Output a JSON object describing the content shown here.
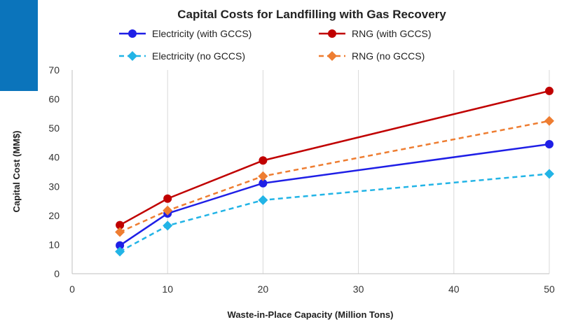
{
  "chart_data": {
    "type": "line",
    "title": "Capital Costs for Landfilling with Gas Recovery",
    "xlabel": "Waste-in-Place Capacity (Million Tons)",
    "ylabel": "Capital Cost (MM$)",
    "xlim": [
      0,
      50
    ],
    "ylim": [
      0,
      70
    ],
    "xticks": [
      0,
      10,
      20,
      30,
      40,
      50
    ],
    "yticks": [
      0,
      10,
      20,
      30,
      40,
      50,
      60,
      70
    ],
    "grid": "vertical",
    "legend_position": "top",
    "x": [
      5,
      10,
      20,
      50
    ],
    "series": [
      {
        "name": "Electricity (with GCCS)",
        "values": [
          9.7,
          20.7,
          31.1,
          44.5
        ],
        "color": "#1f1fe6",
        "dash": "solid",
        "marker": "circle"
      },
      {
        "name": "RNG (with GCCS)",
        "values": [
          16.7,
          25.8,
          38.9,
          62.8
        ],
        "color": "#c00000",
        "dash": "solid",
        "marker": "circle"
      },
      {
        "name": "Electricity (no GCCS)",
        "values": [
          7.6,
          16.5,
          25.3,
          34.3
        ],
        "color": "#22b4e6",
        "dash": "dashed",
        "marker": "diamond"
      },
      {
        "name": "RNG (no GCCS)",
        "values": [
          14.3,
          21.7,
          33.5,
          52.5
        ],
        "color": "#ee7d31",
        "dash": "dashed",
        "marker": "diamond"
      }
    ]
  }
}
